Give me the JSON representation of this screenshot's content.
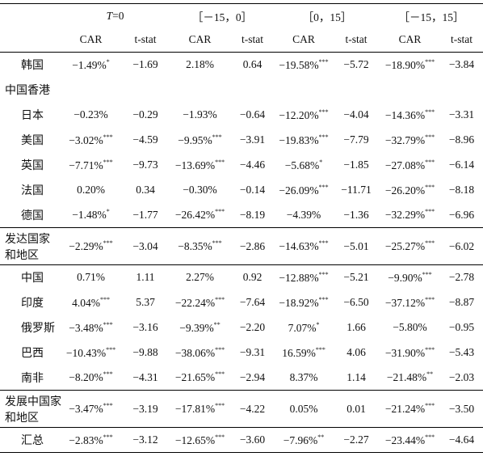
{
  "table": {
    "header": {
      "period_first": {
        "var": "T",
        "rest": "=0"
      },
      "periods": [
        "［－15，0］",
        "［0，15］",
        "［－15，15］"
      ],
      "sub": [
        "CAR",
        "t-stat"
      ]
    },
    "groups": [
      {
        "rows": [
          {
            "label": "韩国",
            "cells": [
              {
                "v": "−1.49%",
                "sig": "*"
              },
              "−1.69",
              {
                "v": "2.18%"
              },
              "0.64",
              {
                "v": "−19.58%",
                "sig": "***"
              },
              "−5.72",
              {
                "v": "−18.90%",
                "sig": "***"
              },
              "−3.84"
            ]
          },
          {
            "label": "中国香港"
          },
          {
            "label": "日本",
            "cells": [
              {
                "v": "−0.23%"
              },
              "−0.29",
              {
                "v": "−1.93%"
              },
              "−0.64",
              {
                "v": "−12.20%",
                "sig": "***"
              },
              "−4.04",
              {
                "v": "−14.36%",
                "sig": "***"
              },
              "−3.31"
            ]
          },
          {
            "label": "美国",
            "cells": [
              {
                "v": "−3.02%",
                "sig": "***"
              },
              "−4.59",
              {
                "v": "−9.95%",
                "sig": "***"
              },
              "−3.91",
              {
                "v": "−19.83%",
                "sig": "***"
              },
              "−7.79",
              {
                "v": "−32.79%",
                "sig": "***"
              },
              "−8.96"
            ]
          },
          {
            "label": "英国",
            "cells": [
              {
                "v": "−7.71%",
                "sig": "***"
              },
              "−9.73",
              {
                "v": "−13.69%",
                "sig": "***"
              },
              "−4.46",
              {
                "v": "−5.68%",
                "sig": "*"
              },
              "−1.85",
              {
                "v": "−27.08%",
                "sig": "***"
              },
              "−6.14"
            ]
          },
          {
            "label": "法国",
            "cells": [
              {
                "v": "0.20%"
              },
              "0.34",
              {
                "v": "−0.30%"
              },
              "−0.14",
              {
                "v": "−26.09%",
                "sig": "***"
              },
              "−11.71",
              {
                "v": "−26.20%",
                "sig": "***"
              },
              "−8.18"
            ]
          },
          {
            "label": "德国",
            "cells": [
              {
                "v": "−1.48%",
                "sig": "*"
              },
              "−1.77",
              {
                "v": "−26.42%",
                "sig": "***"
              },
              "−8.19",
              {
                "v": "−4.39%"
              },
              "−1.36",
              {
                "v": "−32.29%",
                "sig": "***"
              },
              "−6.96"
            ]
          }
        ]
      },
      {
        "rows": [
          {
            "label": [
              "发达国家",
              "和地区"
            ],
            "cells": [
              {
                "v": "−2.29%",
                "sig": "***"
              },
              "−3.04",
              {
                "v": "−8.35%",
                "sig": "***"
              },
              "−2.86",
              {
                "v": "−14.63%",
                "sig": "***"
              },
              "−5.01",
              {
                "v": "−25.27%",
                "sig": "***"
              },
              "−6.02"
            ]
          }
        ]
      },
      {
        "rows": [
          {
            "label": "中国",
            "cells": [
              {
                "v": "0.71%"
              },
              "1.11",
              {
                "v": "2.27%"
              },
              "0.92",
              {
                "v": "−12.88%",
                "sig": "***"
              },
              "−5.21",
              {
                "v": "−9.90%",
                "sig": "***"
              },
              "−2.78"
            ]
          },
          {
            "label": "印度",
            "cells": [
              {
                "v": "4.04%",
                "sig": "***"
              },
              "5.37",
              {
                "v": "−22.24%",
                "sig": "***"
              },
              "−7.64",
              {
                "v": "−18.92%",
                "sig": "***"
              },
              "−6.50",
              {
                "v": "−37.12%",
                "sig": "***"
              },
              "−8.87"
            ]
          },
          {
            "label": "俄罗斯",
            "cells": [
              {
                "v": "−3.48%",
                "sig": "***"
              },
              "−3.16",
              {
                "v": "−9.39%",
                "sig": "**"
              },
              "−2.20",
              {
                "v": "7.07%",
                "sig": "*"
              },
              "1.66",
              {
                "v": "−5.80%"
              },
              "−0.95"
            ]
          },
          {
            "label": "巴西",
            "cells": [
              {
                "v": "−10.43%",
                "sig": "***"
              },
              "−9.88",
              {
                "v": "−38.06%",
                "sig": "***"
              },
              "−9.31",
              {
                "v": "16.59%",
                "sig": "***"
              },
              "4.06",
              {
                "v": "−31.90%",
                "sig": "***"
              },
              "−5.43"
            ]
          },
          {
            "label": "南非",
            "cells": [
              {
                "v": "−8.20%",
                "sig": "***"
              },
              "−4.31",
              {
                "v": "−21.65%",
                "sig": "***"
              },
              "−2.94",
              {
                "v": "8.37%"
              },
              "1.14",
              {
                "v": "−21.48%",
                "sig": "**"
              },
              "−2.03"
            ]
          }
        ]
      },
      {
        "rows": [
          {
            "label": [
              "发展中国家",
              "和地区"
            ],
            "cells": [
              {
                "v": "−3.47%",
                "sig": "***"
              },
              "−3.19",
              {
                "v": "−17.81%",
                "sig": "***"
              },
              "−4.22",
              {
                "v": "0.05%"
              },
              "0.01",
              {
                "v": "−21.24%",
                "sig": "***"
              },
              "−3.50"
            ]
          }
        ]
      },
      {
        "rows": [
          {
            "label": "汇总",
            "cells": [
              {
                "v": "−2.83%",
                "sig": "***"
              },
              "−3.12",
              {
                "v": "−12.65%",
                "sig": "***"
              },
              "−3.60",
              {
                "v": "−7.96%",
                "sig": "**"
              },
              "−2.27",
              {
                "v": "−23.44%",
                "sig": "***"
              },
              "−4.64"
            ]
          }
        ]
      }
    ]
  }
}
